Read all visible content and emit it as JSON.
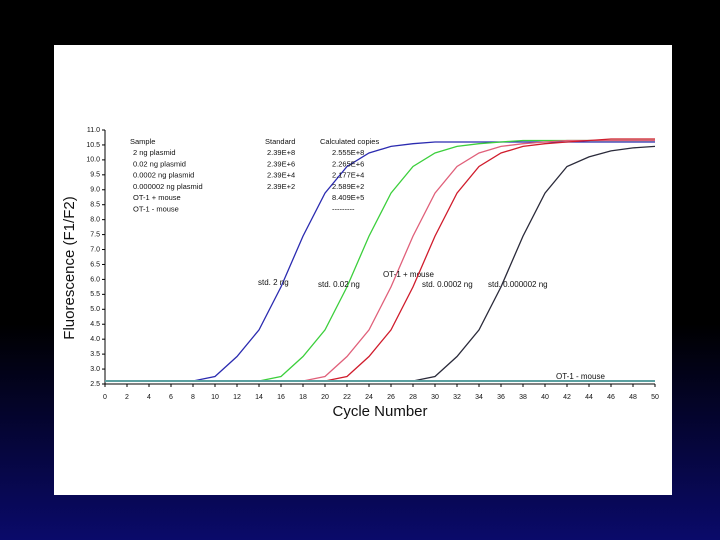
{
  "chart_data": {
    "type": "line",
    "x_label": "Cycle Number",
    "y_label": "Fluorescence (F1/F2)",
    "x": [
      0,
      2,
      4,
      6,
      8,
      10,
      12,
      14,
      16,
      18,
      20,
      22,
      24,
      26,
      28,
      30,
      32,
      34,
      36,
      38,
      40,
      42,
      44,
      46,
      48,
      50
    ],
    "xlim": [
      0,
      50
    ],
    "xticks": [
      0,
      2,
      4,
      6,
      8,
      10,
      12,
      14,
      16,
      18,
      20,
      22,
      24,
      26,
      28,
      30,
      32,
      34,
      36,
      38,
      40,
      42,
      44,
      46,
      48,
      50
    ],
    "ylim": [
      2.5,
      11
    ],
    "yticks": [
      2.5,
      {
        "value": 3,
        "label": "3.0"
      },
      3.5,
      {
        "value": 4,
        "label": "4.0"
      },
      4.5,
      {
        "value": 5,
        "label": "5.0"
      },
      5.5,
      {
        "value": 6,
        "label": "6.0"
      },
      6.5,
      {
        "value": 7,
        "label": "7.0"
      },
      7.5,
      {
        "value": 8,
        "label": "8.0"
      },
      8.5,
      {
        "value": 9,
        "label": "9.0"
      },
      9.5,
      {
        "value": 10,
        "label": "10.0"
      },
      10.5,
      {
        "value": 11,
        "label": "11.0"
      }
    ],
    "series": [
      {
        "name": "std. 2 ng",
        "color": "#2b2bb0",
        "values": [
          2.6,
          2.6,
          2.6,
          2.6,
          2.6,
          2.75,
          3.42,
          4.31,
          5.75,
          7.45,
          8.89,
          9.78,
          10.23,
          10.45,
          10.54,
          10.6,
          10.6,
          10.6,
          10.6,
          10.6,
          10.6,
          10.6,
          10.6,
          10.6,
          10.6,
          10.6
        ]
      },
      {
        "name": "std. 0.02 ng",
        "color": "#3ccf3c",
        "values": [
          2.6,
          2.6,
          2.6,
          2.6,
          2.6,
          2.6,
          2.6,
          2.6,
          2.75,
          3.42,
          4.31,
          5.75,
          7.45,
          8.89,
          9.78,
          10.23,
          10.45,
          10.54,
          10.6,
          10.65,
          10.65,
          10.65,
          10.65,
          10.65,
          10.65,
          10.65
        ]
      },
      {
        "name": "OT-1 + mouse",
        "color": "#e0607a",
        "values": [
          2.6,
          2.6,
          2.6,
          2.6,
          2.6,
          2.6,
          2.6,
          2.6,
          2.6,
          2.6,
          2.75,
          3.42,
          4.31,
          5.75,
          7.45,
          8.89,
          9.78,
          10.23,
          10.45,
          10.54,
          10.6,
          10.65,
          10.65,
          10.65,
          10.65,
          10.65
        ]
      },
      {
        "name": "std. 0.0002 ng",
        "color": "#d01c2c",
        "values": [
          2.6,
          2.6,
          2.6,
          2.6,
          2.6,
          2.6,
          2.6,
          2.6,
          2.6,
          2.6,
          2.6,
          2.75,
          3.42,
          4.31,
          5.75,
          7.45,
          8.89,
          9.78,
          10.23,
          10.45,
          10.54,
          10.6,
          10.65,
          10.7,
          10.7,
          10.7
        ]
      },
      {
        "name": "std. 0.000002 ng",
        "color": "#2a2a3a",
        "values": [
          2.6,
          2.6,
          2.6,
          2.6,
          2.6,
          2.6,
          2.6,
          2.6,
          2.6,
          2.6,
          2.6,
          2.6,
          2.6,
          2.6,
          2.6,
          2.75,
          3.42,
          4.31,
          5.75,
          7.45,
          8.89,
          9.78,
          10.1,
          10.3,
          10.4,
          10.45
        ]
      },
      {
        "name": "OT-1 - mouse",
        "color": "#5aa0a0",
        "values": [
          2.6,
          2.6,
          2.6,
          2.6,
          2.6,
          2.6,
          2.6,
          2.6,
          2.6,
          2.6,
          2.6,
          2.6,
          2.6,
          2.6,
          2.6,
          2.6,
          2.6,
          2.6,
          2.6,
          2.6,
          2.6,
          2.6,
          2.6,
          2.6,
          2.6,
          2.6
        ]
      }
    ],
    "table": {
      "headers": [
        "Sample",
        "Standard",
        "Calculated copies"
      ],
      "rows": [
        {
          "sample": "2 ng  plasmid",
          "standard": "2.39E+8",
          "copies": "2.555E+8"
        },
        {
          "sample": "0.02 ng  plasmid",
          "standard": "2.39E+6",
          "copies": "2.265E+6"
        },
        {
          "sample": "0.0002 ng  plasmid",
          "standard": "2.39E+4",
          "copies": "2.177E+4"
        },
        {
          "sample": "0.000002 ng  plasmid",
          "standard": "2.39E+2",
          "copies": "2.589E+2"
        },
        {
          "sample": "OT-1 + mouse",
          "copies": "8.409E+5"
        },
        {
          "sample": "OT-1 - mouse",
          "copies": "---------"
        }
      ]
    }
  }
}
